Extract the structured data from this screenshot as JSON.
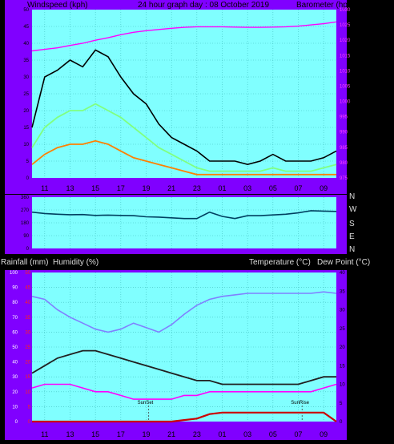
{
  "header": {
    "title": "24 hour graph day : 08 October 2019",
    "windspeed_label": "Windspeed (kph)",
    "barometer_label": "Barometer (hpa)",
    "rain_label": "Rainfall (mm)",
    "humidity_label": "Humidity (%)",
    "temp_label": "Temperature (°C)",
    "dew_label": "Dew Point (°C)",
    "direction_labels": [
      "N",
      "W",
      "S",
      "E",
      "N"
    ],
    "sunset_label": "SunSet",
    "sunrise_label": "SunRise"
  },
  "colors": {
    "background": "#000000",
    "axis_panel": "#8000ff",
    "plot_bg": "#80ffff",
    "grid": "#40c0c0",
    "gust": "#000000",
    "avg_wind": "#80ff80",
    "low_wind": "#ff8000",
    "barometer": "#ff00ff",
    "humidity": "#8080ff",
    "temperature": "#202020",
    "dew_point": "#ff00ff",
    "rain": "#cc0000",
    "direction": "#004060"
  },
  "chart_data": [
    {
      "type": "line",
      "name": "wind-barometer",
      "x_tick_labels": [
        "11",
        "13",
        "15",
        "17",
        "19",
        "21",
        "23",
        "01",
        "03",
        "05",
        "07",
        "09"
      ],
      "x_hours": [
        10,
        11,
        12,
        13,
        14,
        15,
        16,
        17,
        18,
        19,
        20,
        21,
        22,
        23,
        24,
        25,
        26,
        27,
        28,
        29,
        30,
        31,
        32,
        33,
        34
      ],
      "ylim_left": [
        0,
        50
      ],
      "yticks_left": [
        "0",
        "5",
        "10",
        "15",
        "20",
        "25",
        "30",
        "35",
        "40",
        "45",
        "50"
      ],
      "ylim_right": [
        975,
        1030
      ],
      "yticks_right": [
        "975",
        "980",
        "985",
        "990",
        "995",
        "1000",
        "1005",
        "1010",
        "1015",
        "1020",
        "1025",
        "1030"
      ],
      "series": [
        {
          "key": "gust",
          "values": [
            15,
            30,
            32,
            35,
            33,
            38,
            36,
            30,
            25,
            22,
            16,
            12,
            10,
            8,
            5,
            5,
            5,
            4,
            5,
            7,
            5,
            5,
            5,
            6,
            8
          ]
        },
        {
          "key": "avg_wind",
          "values": [
            9,
            15,
            18,
            20,
            20,
            22,
            20,
            18,
            15,
            12,
            9,
            7,
            5,
            3,
            2,
            2,
            2,
            2,
            2,
            3,
            2,
            2,
            2,
            3,
            4
          ]
        },
        {
          "key": "low_wind",
          "values": [
            4,
            7,
            9,
            10,
            10,
            11,
            10,
            8,
            6,
            5,
            4,
            3,
            2,
            1,
            1,
            1,
            1,
            1,
            1,
            1,
            1,
            1,
            1,
            1,
            1
          ]
        },
        {
          "key": "barometer",
          "values": [
            1016.5,
            1017,
            1017.5,
            1018.3,
            1019,
            1020,
            1020.8,
            1021.8,
            1022.6,
            1023.1,
            1023.5,
            1023.9,
            1024.2,
            1024.4,
            1024.4,
            1024.4,
            1024.3,
            1024.2,
            1024.2,
            1024.3,
            1024.4,
            1024.6,
            1025,
            1025.4,
            1026
          ]
        }
      ]
    },
    {
      "type": "line",
      "name": "wind-direction",
      "ylim": [
        0,
        360
      ],
      "yticks": [
        "0",
        "90",
        "180",
        "270",
        "360"
      ],
      "series": [
        {
          "key": "direction",
          "values": [
            255,
            245,
            240,
            237,
            238,
            232,
            234,
            232,
            230,
            222,
            220,
            215,
            210,
            210,
            255,
            225,
            210,
            230,
            230,
            235,
            240,
            250,
            265,
            262,
            260
          ]
        }
      ]
    },
    {
      "type": "line",
      "name": "temp-humidity-rain",
      "ylim_humidity": [
        0,
        100
      ],
      "yticks_humidity": [
        "0",
        "10",
        "20",
        "30",
        "40",
        "50",
        "60",
        "70",
        "80",
        "90",
        "100"
      ],
      "ylim_rain": [
        0,
        50
      ],
      "yticks_rain": [
        "0",
        "5",
        "10",
        "15",
        "20",
        "25",
        "30",
        "35",
        "40",
        "45",
        "50"
      ],
      "ylim_temp": [
        0,
        40
      ],
      "yticks_temp": [
        "0",
        "5",
        "10",
        "15",
        "20",
        "25",
        "30",
        "35",
        "40"
      ],
      "sunset_hour": 19.2,
      "sunrise_hour": 31.3,
      "series": [
        {
          "key": "humidity",
          "values": [
            84,
            82,
            75,
            70,
            66,
            62,
            60,
            62,
            66,
            63,
            60,
            65,
            72,
            78,
            82,
            84,
            85,
            86,
            86,
            86,
            86,
            86,
            86,
            87,
            86
          ]
        },
        {
          "key": "temperature",
          "values": [
            13,
            15,
            17,
            18,
            19,
            19,
            18,
            17,
            16,
            15,
            14,
            13,
            12,
            11,
            11,
            10,
            10,
            10,
            10,
            10,
            10,
            10,
            11,
            12,
            12
          ]
        },
        {
          "key": "dew_point",
          "values": [
            9,
            10,
            10,
            10,
            9,
            8,
            8,
            7,
            6,
            6,
            6,
            6,
            7,
            7,
            8,
            8,
            8,
            8,
            8,
            8,
            8,
            8,
            8,
            9,
            10
          ]
        },
        {
          "key": "rain",
          "values": [
            0,
            0,
            0,
            0,
            0,
            0,
            0,
            0,
            0,
            0,
            0,
            0,
            0.5,
            1,
            2.5,
            3,
            3,
            3,
            3,
            3,
            3,
            3,
            3,
            3,
            0
          ]
        }
      ]
    }
  ]
}
